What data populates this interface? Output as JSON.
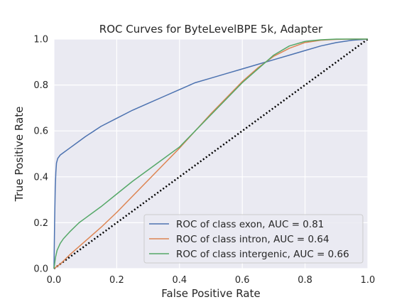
{
  "chart_data": {
    "type": "line",
    "title": "ROC Curves for ByteLevelBPE 5k, Adapter",
    "xlabel": "False Positive Rate",
    "ylabel": "True Positive Rate",
    "xlim": [
      0.0,
      1.0
    ],
    "ylim": [
      0.0,
      1.0
    ],
    "xticks": [
      "0.0",
      "0.2",
      "0.4",
      "0.6",
      "0.8",
      "1.0"
    ],
    "yticks": [
      "0.0",
      "0.2",
      "0.4",
      "0.6",
      "0.8",
      "1.0"
    ],
    "grid": true,
    "legend_position": "lower-right",
    "series": [
      {
        "name": "ROC of class exon, AUC = 0.81",
        "color": "#4c72b0",
        "x": [
          0,
          0.002,
          0.004,
          0.006,
          0.008,
          0.012,
          0.02,
          0.03,
          0.05,
          0.08,
          0.1,
          0.15,
          0.2,
          0.25,
          0.3,
          0.35,
          0.4,
          0.45,
          0.5,
          0.55,
          0.6,
          0.65,
          0.7,
          0.75,
          0.8,
          0.85,
          0.9,
          0.95,
          1.0
        ],
        "y": [
          0,
          0.2,
          0.35,
          0.42,
          0.46,
          0.48,
          0.495,
          0.505,
          0.525,
          0.555,
          0.575,
          0.62,
          0.655,
          0.69,
          0.72,
          0.75,
          0.78,
          0.81,
          0.83,
          0.85,
          0.87,
          0.89,
          0.91,
          0.93,
          0.95,
          0.97,
          0.985,
          0.995,
          1.0
        ]
      },
      {
        "name": "ROC of class intron, AUC = 0.64",
        "color": "#dd8452",
        "x": [
          0,
          0.02,
          0.05,
          0.1,
          0.15,
          0.2,
          0.25,
          0.3,
          0.35,
          0.4,
          0.45,
          0.5,
          0.55,
          0.6,
          0.65,
          0.7,
          0.75,
          0.8,
          0.85,
          0.9,
          0.95,
          1.0
        ],
        "y": [
          0,
          0.02,
          0.06,
          0.12,
          0.18,
          0.245,
          0.315,
          0.385,
          0.455,
          0.525,
          0.6,
          0.675,
          0.745,
          0.815,
          0.875,
          0.925,
          0.96,
          0.985,
          0.995,
          0.999,
          1.0,
          1.0
        ]
      },
      {
        "name": "ROC of class intergenic, AUC = 0.66",
        "color": "#55a868",
        "x": [
          0,
          0.005,
          0.01,
          0.02,
          0.03,
          0.05,
          0.08,
          0.1,
          0.15,
          0.2,
          0.25,
          0.3,
          0.35,
          0.4,
          0.45,
          0.5,
          0.55,
          0.6,
          0.65,
          0.7,
          0.75,
          0.8,
          0.85,
          0.9,
          0.95,
          1.0
        ],
        "y": [
          0,
          0.05,
          0.08,
          0.11,
          0.13,
          0.16,
          0.2,
          0.22,
          0.27,
          0.325,
          0.38,
          0.43,
          0.48,
          0.53,
          0.6,
          0.67,
          0.74,
          0.81,
          0.87,
          0.93,
          0.97,
          0.99,
          0.997,
          1.0,
          1.0,
          1.0
        ]
      }
    ],
    "reference_line": {
      "style": "dotted",
      "color": "#000000",
      "x": [
        0,
        1
      ],
      "y": [
        0,
        1
      ]
    }
  }
}
